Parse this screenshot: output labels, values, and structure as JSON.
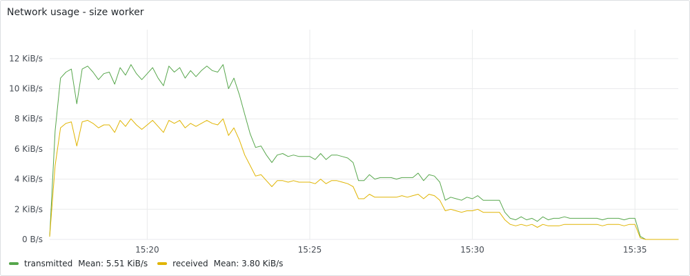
{
  "panel": {
    "title": "Network usage - size worker"
  },
  "legend": {
    "items": [
      {
        "name": "transmitted",
        "stat": "Mean: 5.51 KiB/s",
        "color": "#56a64b"
      },
      {
        "name": "received",
        "stat": "Mean: 3.80 KiB/s",
        "color": "#e0b400"
      }
    ]
  },
  "chart_data": {
    "type": "line",
    "title": "Network usage - size worker",
    "unit": "KiB/s",
    "x_unit": "minutes",
    "xlim": [
      "15:17:00",
      "15:36:20"
    ],
    "ylim": [
      0,
      13
    ],
    "y_ticks": [
      0,
      2,
      4,
      6,
      8,
      10,
      12
    ],
    "y_tick_labels": [
      "0 B/s",
      "2 KiB/s",
      "4 KiB/s",
      "6 KiB/s",
      "8 KiB/s",
      "10 KiB/s",
      "12 KiB/s"
    ],
    "x_ticks": [
      "15:20",
      "15:25",
      "15:30",
      "15:35"
    ],
    "x_tick_labels": [
      "15:20",
      "15:25",
      "15:30",
      "15:35"
    ],
    "grid": true,
    "legend_position": "bottom-left",
    "x": [
      "15:17:00",
      "15:17:10",
      "15:17:20",
      "15:17:30",
      "15:17:40",
      "15:17:50",
      "15:18:00",
      "15:18:10",
      "15:18:20",
      "15:18:30",
      "15:18:40",
      "15:18:50",
      "15:19:00",
      "15:19:10",
      "15:19:20",
      "15:19:30",
      "15:19:40",
      "15:19:50",
      "15:20:00",
      "15:20:10",
      "15:20:20",
      "15:20:30",
      "15:20:40",
      "15:20:50",
      "15:21:00",
      "15:21:10",
      "15:21:20",
      "15:21:30",
      "15:21:40",
      "15:21:50",
      "15:22:00",
      "15:22:10",
      "15:22:20",
      "15:22:30",
      "15:22:40",
      "15:22:50",
      "15:23:00",
      "15:23:10",
      "15:23:20",
      "15:23:30",
      "15:23:40",
      "15:23:50",
      "15:24:00",
      "15:24:10",
      "15:24:20",
      "15:24:30",
      "15:24:40",
      "15:24:50",
      "15:25:00",
      "15:25:10",
      "15:25:20",
      "15:25:30",
      "15:25:40",
      "15:25:50",
      "15:26:00",
      "15:26:10",
      "15:26:20",
      "15:26:30",
      "15:26:40",
      "15:26:50",
      "15:27:00",
      "15:27:10",
      "15:27:20",
      "15:27:30",
      "15:27:40",
      "15:27:50",
      "15:28:00",
      "15:28:10",
      "15:28:20",
      "15:28:30",
      "15:28:40",
      "15:28:50",
      "15:29:00",
      "15:29:10",
      "15:29:20",
      "15:29:30",
      "15:29:40",
      "15:29:50",
      "15:30:00",
      "15:30:10",
      "15:30:20",
      "15:30:30",
      "15:30:40",
      "15:30:50",
      "15:31:00",
      "15:31:10",
      "15:31:20",
      "15:31:30",
      "15:31:40",
      "15:31:50",
      "15:32:00",
      "15:32:10",
      "15:32:20",
      "15:32:30",
      "15:32:40",
      "15:32:50",
      "15:33:00",
      "15:33:10",
      "15:33:20",
      "15:33:30",
      "15:33:40",
      "15:33:50",
      "15:34:00",
      "15:34:10",
      "15:34:20",
      "15:34:30",
      "15:34:40",
      "15:34:50",
      "15:35:00",
      "15:35:10",
      "15:35:20",
      "15:35:30",
      "15:35:40",
      "15:35:50",
      "15:36:00",
      "15:36:10",
      "15:36:20"
    ],
    "series": [
      {
        "name": "transmitted",
        "color": "#56a64b",
        "values": [
          0.2,
          7.2,
          10.7,
          11.1,
          11.3,
          9.0,
          11.3,
          11.5,
          11.1,
          10.6,
          11.0,
          11.1,
          10.3,
          11.4,
          10.9,
          11.6,
          11.0,
          10.6,
          11.0,
          11.4,
          10.7,
          10.2,
          11.5,
          11.1,
          11.4,
          10.7,
          11.2,
          10.8,
          11.2,
          11.5,
          11.2,
          11.1,
          11.6,
          10.0,
          10.7,
          9.6,
          8.3,
          7.0,
          6.1,
          6.2,
          5.6,
          5.1,
          5.6,
          5.7,
          5.5,
          5.6,
          5.5,
          5.5,
          5.5,
          5.3,
          5.7,
          5.3,
          5.6,
          5.6,
          5.5,
          5.4,
          5.1,
          3.9,
          3.9,
          4.3,
          4.0,
          4.1,
          4.1,
          4.1,
          4.0,
          4.1,
          4.1,
          4.1,
          4.4,
          3.9,
          4.3,
          4.2,
          3.8,
          2.6,
          2.8,
          2.7,
          2.6,
          2.8,
          2.7,
          2.9,
          2.6,
          2.6,
          2.6,
          2.6,
          1.8,
          1.4,
          1.3,
          1.5,
          1.3,
          1.4,
          1.2,
          1.5,
          1.3,
          1.4,
          1.4,
          1.5,
          1.4,
          1.4,
          1.4,
          1.4,
          1.4,
          1.4,
          1.3,
          1.4,
          1.4,
          1.4,
          1.3,
          1.4,
          1.4,
          0.2,
          0.0,
          0.0,
          0.0,
          0.0,
          0.0,
          0.0,
          0.0
        ]
      },
      {
        "name": "received",
        "color": "#e0b400",
        "values": [
          0.2,
          4.9,
          7.4,
          7.7,
          7.8,
          6.2,
          7.8,
          7.9,
          7.7,
          7.4,
          7.6,
          7.6,
          7.1,
          7.9,
          7.5,
          8.0,
          7.6,
          7.3,
          7.6,
          7.9,
          7.5,
          7.1,
          7.9,
          7.7,
          7.9,
          7.4,
          7.7,
          7.5,
          7.7,
          7.9,
          7.7,
          7.6,
          8.0,
          6.9,
          7.4,
          6.6,
          5.6,
          4.9,
          4.2,
          4.3,
          3.9,
          3.5,
          3.9,
          3.9,
          3.8,
          3.9,
          3.8,
          3.8,
          3.8,
          3.7,
          4.0,
          3.7,
          3.9,
          3.9,
          3.8,
          3.7,
          3.5,
          2.7,
          2.7,
          3.0,
          2.8,
          2.8,
          2.8,
          2.8,
          2.8,
          2.9,
          2.8,
          2.9,
          3.0,
          2.7,
          3.0,
          2.9,
          2.6,
          1.9,
          2.0,
          1.9,
          1.8,
          1.9,
          1.9,
          2.0,
          1.8,
          1.8,
          1.8,
          1.8,
          1.3,
          1.0,
          0.9,
          1.0,
          0.9,
          1.0,
          0.8,
          1.0,
          0.9,
          0.9,
          0.9,
          1.0,
          1.0,
          1.0,
          1.0,
          1.0,
          1.0,
          1.0,
          0.9,
          1.0,
          1.0,
          1.0,
          0.9,
          1.0,
          1.0,
          0.1,
          0.0,
          0.0,
          0.0,
          0.0,
          0.0,
          0.0,
          0.0
        ]
      }
    ]
  }
}
